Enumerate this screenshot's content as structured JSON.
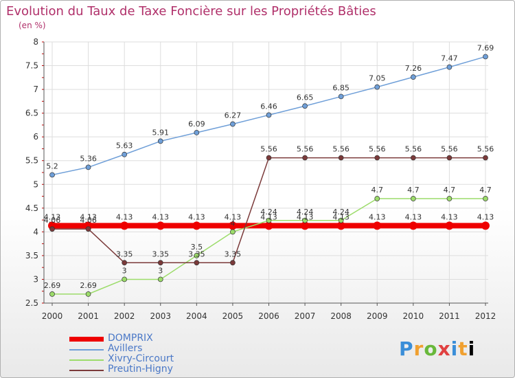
{
  "title": "Evolution du Taux de Taxe Foncière sur les Propriétés Bâties",
  "unit": "(en %)",
  "brand": [
    "P",
    "r",
    "o",
    "x",
    "i",
    "t",
    "i"
  ],
  "chart_data": {
    "type": "line",
    "title": "Evolution du Taux de Taxe Foncière sur les Propriétés Bâties",
    "ylabel": "(en %)",
    "xlabel": "",
    "ylim": [
      2.5,
      8
    ],
    "yticks": [
      "2.5",
      "3",
      "3.5",
      "4",
      "4.5",
      "5",
      "5.5",
      "6",
      "6.5",
      "7",
      "7.5",
      "8"
    ],
    "x": [
      "2000",
      "2001",
      "2002",
      "2003",
      "2004",
      "2005",
      "2006",
      "2007",
      "2008",
      "2009",
      "2010",
      "2011",
      "2012"
    ],
    "series": [
      {
        "name": "DOMPRIX",
        "color": "#ee0000",
        "values": [
          4.13,
          4.13,
          4.13,
          4.13,
          4.13,
          4.13,
          4.13,
          4.13,
          4.13,
          4.13,
          4.13,
          4.13,
          4.13
        ],
        "labels": [
          "4.13",
          "4.13",
          "4.13",
          "4.13",
          "4.13",
          "4.13",
          "4.13",
          "4.13",
          "4.13",
          "4.13",
          "4.13",
          "4.13",
          "4.13"
        ]
      },
      {
        "name": "Avillers",
        "color": "#6f9fd8",
        "values": [
          5.2,
          5.36,
          5.63,
          5.91,
          6.09,
          6.27,
          6.46,
          6.65,
          6.85,
          7.05,
          7.26,
          7.47,
          7.69
        ],
        "labels": [
          "5.2",
          "5.36",
          "5.63",
          "5.91",
          "6.09",
          "6.27",
          "6.46",
          "6.65",
          "6.85",
          "7.05",
          "7.26",
          "7.47",
          "7.69"
        ]
      },
      {
        "name": "Xivry-Circourt",
        "color": "#9cdc6a",
        "values": [
          2.69,
          2.69,
          3,
          3,
          3.5,
          4,
          4.24,
          4.24,
          4.24,
          4.7,
          4.7,
          4.7,
          4.7
        ],
        "labels": [
          "2.69",
          "2.69",
          "3",
          "3",
          "3.5",
          "4",
          "4.24",
          "4.24",
          "4.24",
          "4.7",
          "4.7",
          "4.7",
          "4.7"
        ]
      },
      {
        "name": "Preutin-Higny",
        "color": "#7b3a3a",
        "values": [
          4.06,
          4.06,
          3.35,
          3.35,
          3.35,
          3.35,
          5.56,
          5.56,
          5.56,
          5.56,
          5.56,
          5.56,
          5.56
        ],
        "labels": [
          "4.06",
          "4.06",
          "3.35",
          "3.35",
          "3.35",
          "3.35",
          "5.56",
          "5.56",
          "5.56",
          "5.56",
          "5.56",
          "5.56",
          "5.56"
        ]
      }
    ]
  }
}
